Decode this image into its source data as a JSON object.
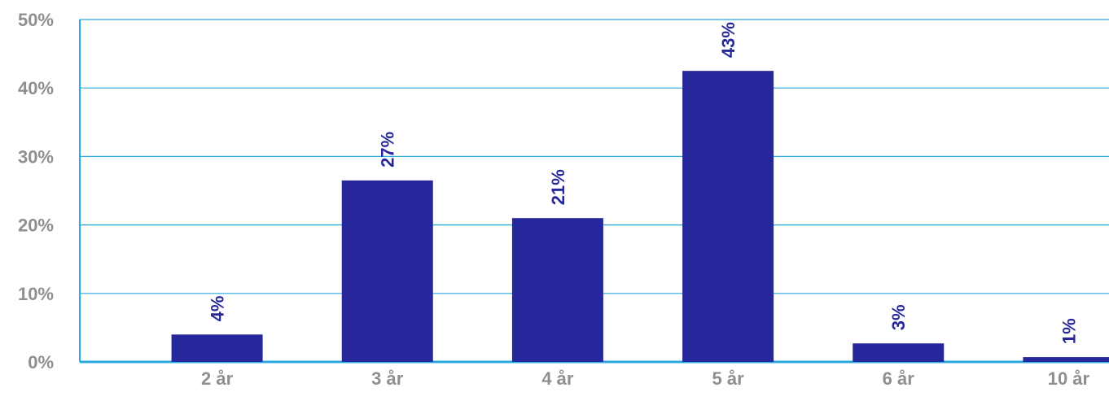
{
  "chart_data": {
    "type": "bar",
    "categories": [
      "2 år",
      "3 år",
      "4 år",
      "5 år",
      "6 år",
      "10 år"
    ],
    "values": [
      4,
      26.5,
      21,
      42.5,
      2.7,
      0.7
    ],
    "data_labels": [
      "4%",
      "27%",
      "21%",
      "43%",
      "3%",
      "1%"
    ],
    "ylim": [
      0,
      50
    ],
    "y_ticks": [
      0,
      10,
      20,
      30,
      40,
      50
    ],
    "y_tick_labels": [
      "0%",
      "10%",
      "20%",
      "30%",
      "40%",
      "50%"
    ],
    "grid": true,
    "colors": {
      "bar": "#26279a",
      "grid": "#29a9e0",
      "axis": "#29a9e0",
      "tick_text": "#8f8f8f",
      "data_label_text": "#26279a"
    }
  }
}
